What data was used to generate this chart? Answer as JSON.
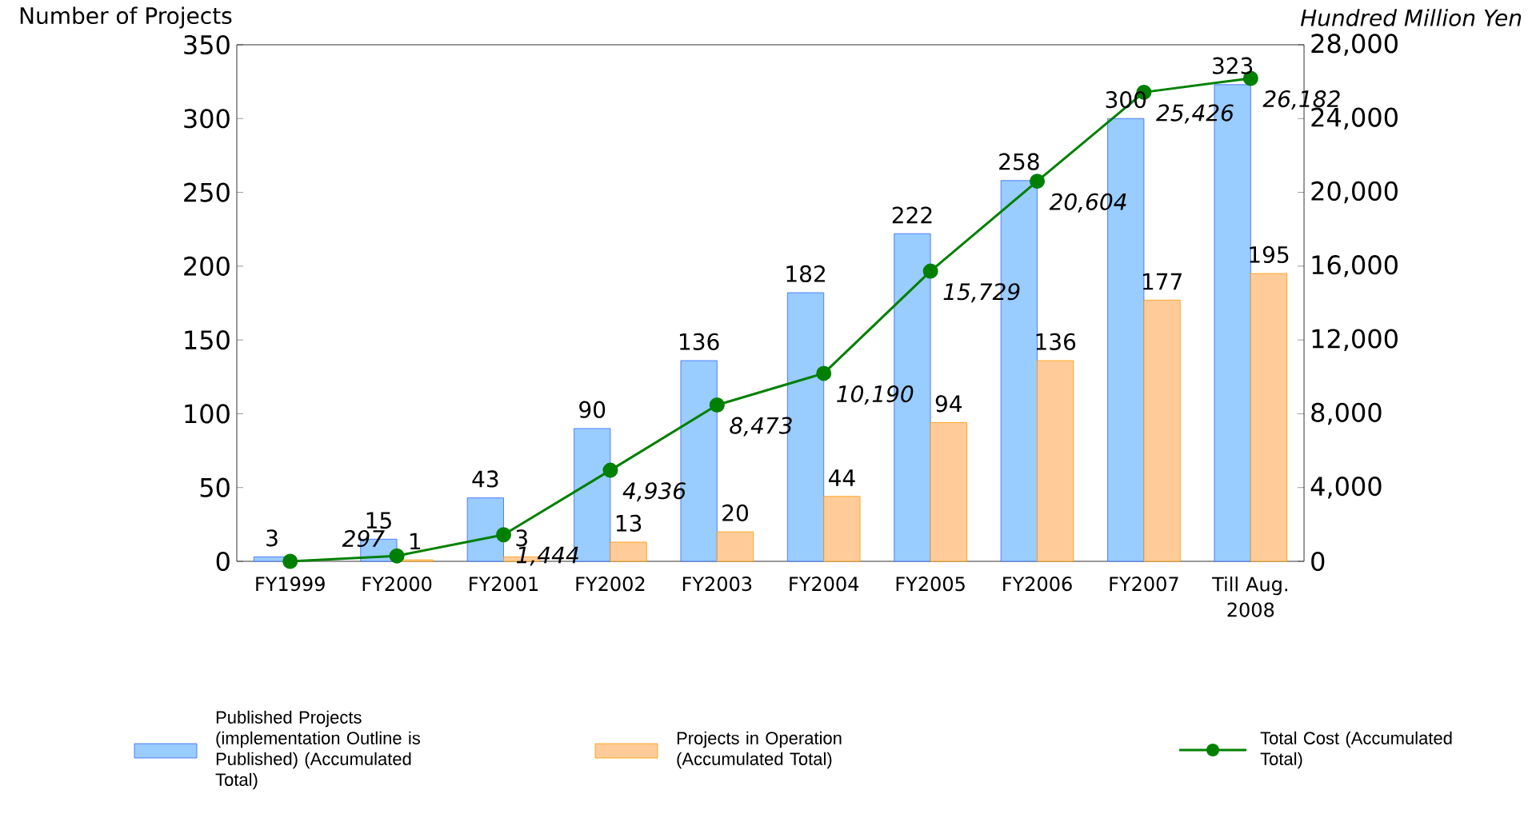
{
  "chart_data": {
    "type": "bar",
    "ylabel": "Number of Projects",
    "y2label": "Hundred Million Yen",
    "categories": [
      "FY1999",
      "FY2000",
      "FY2001",
      "FY2002",
      "FY2003",
      "FY2004",
      "FY2005",
      "FY2006",
      "FY2007",
      "Till Aug. 2008"
    ],
    "series": [
      {
        "name": "Published Projects (implementation Outline is Published) (Accumulated Total)",
        "color": "#99ccff",
        "values": [
          3,
          15,
          43,
          90,
          136,
          182,
          222,
          258,
          300,
          323
        ],
        "value_labels": [
          "3",
          "15",
          "43",
          "90",
          "136",
          "182",
          "222",
          "258",
          "300",
          "323"
        ]
      },
      {
        "name": "Projects in Operation (Accumulated Total)",
        "color": "#ffcc99",
        "values": [
          null,
          1,
          3,
          13,
          20,
          44,
          94,
          136,
          177,
          195
        ],
        "value_labels": [
          null,
          "1",
          "3",
          "13",
          "20",
          "44",
          "94",
          "136",
          "177",
          "195"
        ]
      },
      {
        "name": "Total Cost (Accumulated Total)",
        "type": "line",
        "axis": "y2",
        "color": "#008000",
        "marker": "circle",
        "values": [
          0,
          297,
          1444,
          4936,
          8473,
          10190,
          15729,
          20604,
          25426,
          26182
        ],
        "value_labels": [
          null,
          "297",
          "1,444",
          "4,936",
          "8,473",
          "10,190",
          "15,729",
          "20,604",
          "25,426",
          "26,182"
        ]
      }
    ],
    "ylim": [
      0,
      350
    ],
    "yticks": [
      0,
      50,
      100,
      150,
      200,
      250,
      300,
      350
    ],
    "y2lim": [
      0,
      28000
    ],
    "y2ticks": [
      0,
      {
        "value": 4000,
        "label": "4,000"
      },
      {
        "value": 8000,
        "label": "8,000"
      },
      {
        "value": 12000,
        "label": "12,000"
      },
      {
        "value": 16000,
        "label": "16,000"
      },
      {
        "value": 20000,
        "label": "20,000"
      },
      {
        "value": 24000,
        "label": "24,000"
      },
      {
        "value": 28000,
        "label": "28,000"
      }
    ],
    "legend": "bottom"
  }
}
